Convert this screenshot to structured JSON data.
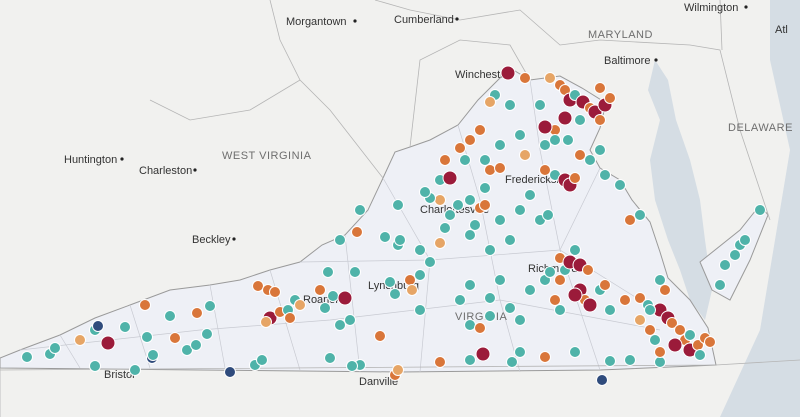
{
  "map": {
    "cities": [
      "Morgantown",
      "Cumberland",
      "Wilmington",
      "Atl",
      "Baltimore",
      "Winchester",
      "Huntington",
      "Charleston",
      "Fredericksburg",
      "Charlottesville",
      "Beckley",
      "Lynchburg",
      "Roanoke",
      "Richmond",
      "Bristol",
      "Danville"
    ],
    "states": [
      "MARYLAND",
      "DELAWARE",
      "WEST VIRGINIA",
      "VIRGINIA"
    ]
  }
}
